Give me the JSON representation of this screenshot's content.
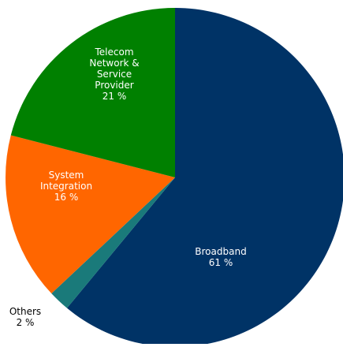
{
  "chart_data": {
    "type": "pie",
    "title": "",
    "start_angle_deg": 0,
    "direction": "clockwise",
    "slices": [
      {
        "label_lines": [
          "Broadband",
          "61 %"
        ],
        "value": 61,
        "color": "#003366",
        "label_color": "#ffffff"
      },
      {
        "label_lines": [
          "Others",
          "2 %"
        ],
        "value": 2,
        "color": "#1a7a7a",
        "label_color": "#000000"
      },
      {
        "label_lines": [
          "System",
          "Integration",
          "16 %"
        ],
        "value": 16,
        "color": "#ff6600",
        "label_color": "#ffffff"
      },
      {
        "label_lines": [
          "Telecom",
          "Network &",
          "Service",
          "Provider",
          "21 %"
        ],
        "value": 21,
        "color": "#008000",
        "label_color": "#ffffff"
      }
    ]
  }
}
